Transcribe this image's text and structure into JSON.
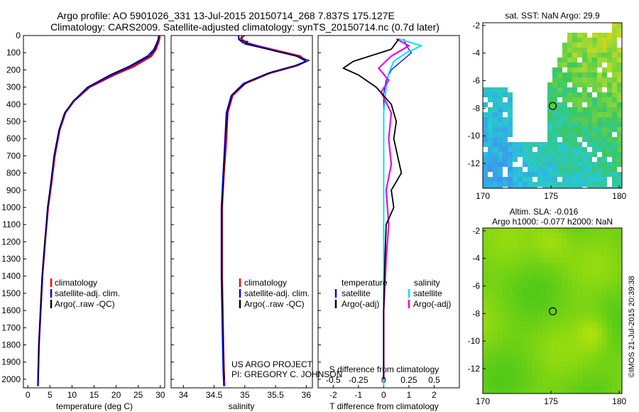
{
  "header": {
    "title_line1": "Argo profile: AO 5901026_331 13-Jul-2015 20150714_268 7.837S 175.127E",
    "title_line2": "Climatology: CARS2009. Satellite-adjusted climatology: synTS_20150714.nc (0.7d later)"
  },
  "colors": {
    "climatology": "#ff0000",
    "satellite": "#0000ff",
    "argo": "#000000",
    "salinity_satellite": "#00e5ee",
    "salinity_argo": "#ee00ee"
  },
  "chart_data": [
    {
      "type": "line",
      "id": "temperature",
      "xlabel": "temperature (deg C)",
      "ylabel": "",
      "xlim": [
        -1,
        31
      ],
      "ylim": [
        2050,
        0
      ],
      "xticks": [
        0,
        5,
        10,
        15,
        20,
        25,
        30
      ],
      "xtick_labels": [
        "0",
        "5",
        "10",
        "15",
        "20",
        "25",
        "30"
      ],
      "yticks": [
        0,
        100,
        200,
        300,
        400,
        500,
        600,
        700,
        800,
        900,
        1000,
        1100,
        1200,
        1300,
        1400,
        1500,
        1600,
        1700,
        1800,
        1900,
        2000
      ],
      "ytick_labels": [
        "0",
        "100",
        "200",
        "300",
        "400",
        "500",
        "600",
        "700",
        "800",
        "900",
        "1000",
        "1100",
        "1200",
        "1300",
        "1400",
        "1500",
        "1600",
        "1700",
        "1800",
        "1900",
        "2000"
      ],
      "legend": [
        "climatology",
        "satellite-adj. clim.",
        "Argo(..raw -QC)"
      ],
      "legend_position": "lower-right",
      "series": [
        {
          "name": "climatology",
          "x": [
            29.9,
            29.8,
            29.6,
            29.0,
            28.0,
            24.0,
            19.5,
            14.0,
            10.5,
            8.5,
            7.2,
            6.1,
            5.4,
            4.6,
            3.9,
            3.3,
            2.9,
            2.5,
            2.3
          ],
          "y": [
            0,
            20,
            40,
            80,
            120,
            180,
            230,
            300,
            380,
            450,
            550,
            700,
            850,
            1000,
            1200,
            1400,
            1600,
            1800,
            2040
          ]
        },
        {
          "name": "satellite",
          "x": [
            29.7,
            29.6,
            29.4,
            28.8,
            27.5,
            23.2,
            19.0,
            13.8,
            10.4,
            8.4,
            7.1,
            6.0,
            5.3,
            4.5,
            3.9,
            3.3,
            2.9,
            2.5,
            2.3
          ],
          "y": [
            0,
            20,
            40,
            80,
            120,
            180,
            230,
            300,
            380,
            450,
            550,
            700,
            850,
            1000,
            1200,
            1400,
            1600,
            1800,
            2040
          ]
        },
        {
          "name": "argo",
          "x": [
            29.6,
            29.5,
            29.2,
            28.5,
            27.0,
            22.8,
            18.5,
            13.5,
            10.3,
            8.3,
            7.0,
            5.9,
            5.2,
            4.5,
            3.8,
            3.2,
            2.8,
            2.5,
            2.3
          ],
          "y": [
            0,
            20,
            40,
            80,
            120,
            180,
            230,
            300,
            380,
            450,
            550,
            700,
            850,
            1000,
            1200,
            1400,
            1600,
            1800,
            2000
          ]
        }
      ]
    },
    {
      "type": "line",
      "id": "salinity",
      "xlabel": "salinity",
      "xlim": [
        33.8,
        36.1
      ],
      "ylim": [
        2050,
        0
      ],
      "xticks": [
        34,
        34.5,
        35,
        35.5,
        36
      ],
      "xtick_labels": [
        "34",
        "34.5",
        "35",
        "35.5",
        "36"
      ],
      "legend": [
        "climatology",
        "satellite-adj. clim.",
        "Argo(..raw -QC)"
      ],
      "legend_position": "lower-right",
      "annotation_line1": "US ARGO PROJECT",
      "annotation_line2": "PI: GREGORY C. JOHNSON",
      "series": [
        {
          "name": "climatology",
          "x": [
            34.95,
            34.95,
            35.0,
            35.2,
            35.55,
            35.9,
            36.0,
            35.85,
            35.4,
            35.0,
            34.8,
            34.72,
            34.7,
            34.66,
            34.63,
            34.63,
            34.63,
            34.64,
            34.65,
            34.66,
            34.67
          ],
          "y": [
            0,
            20,
            40,
            60,
            90,
            120,
            150,
            175,
            220,
            280,
            350,
            450,
            600,
            800,
            1000,
            1200,
            1400,
            1600,
            1800,
            1950,
            2040
          ]
        },
        {
          "name": "satellite",
          "x": [
            34.9,
            34.9,
            34.96,
            35.18,
            35.5,
            35.85,
            36.0,
            35.83,
            35.38,
            34.98,
            34.78,
            34.7,
            34.68,
            34.65,
            34.62,
            34.62,
            34.62,
            34.63,
            34.64,
            34.65,
            34.66
          ],
          "y": [
            0,
            20,
            40,
            60,
            90,
            120,
            150,
            175,
            220,
            280,
            350,
            450,
            600,
            800,
            1000,
            1200,
            1400,
            1600,
            1800,
            1950,
            2040
          ]
        },
        {
          "name": "argo",
          "x": [
            35.0,
            34.9,
            35.05,
            35.0,
            35.3,
            35.75,
            36.05,
            35.88,
            35.45,
            35.05,
            34.8,
            34.72,
            34.69,
            34.66,
            34.63,
            34.63,
            34.63,
            34.64,
            34.65,
            34.66,
            34.67
          ],
          "y": [
            0,
            25,
            35,
            50,
            75,
            110,
            145,
            170,
            210,
            270,
            340,
            440,
            590,
            790,
            1000,
            1200,
            1400,
            1600,
            1800,
            1950,
            2000
          ]
        }
      ]
    },
    {
      "type": "line",
      "id": "differences",
      "xlabel": "T difference from climatology",
      "xlabel_top": "S difference from climatology",
      "xlim": [
        -2.6,
        3.0
      ],
      "ylim": [
        2050,
        0
      ],
      "xticks": [
        -2,
        -1,
        0,
        1,
        2
      ],
      "xtick_labels": [
        "-2",
        "-1",
        "0",
        "1",
        "2"
      ],
      "sticks": [
        -0.5,
        -0.25,
        0,
        0.25,
        0.5
      ],
      "stick_labels": [
        "-0.5",
        "-0.25",
        "0",
        "0.25",
        "0.5"
      ],
      "legend_temperature_title": "temperature",
      "legend_salinity_title": "salinity",
      "legend_temperature": [
        "satellite",
        "Argo(-adj)"
      ],
      "legend_salinity": [
        "satellite",
        "Argo(-adj)"
      ],
      "series": [
        {
          "name": "T satellite",
          "x": [
            0.8,
            0.9,
            1.1,
            0.7,
            0.3,
            0.1,
            0.0,
            0.0,
            0.0,
            0.0,
            0.0,
            0.0,
            0.0,
            0.0,
            0.0,
            0.0
          ],
          "y": [
            20,
            60,
            100,
            150,
            200,
            260,
            340,
            500,
            700,
            900,
            1100,
            1300,
            1500,
            1700,
            1900,
            2040
          ]
        },
        {
          "name": "T argo",
          "x": [
            0.6,
            0.3,
            -1.2,
            -1.6,
            -1.0,
            -0.3,
            0.3,
            0.5,
            0.4,
            0.7,
            0.3,
            0.4,
            0.1,
            0.05,
            0.0,
            0.0
          ],
          "y": [
            20,
            80,
            150,
            190,
            230,
            300,
            400,
            500,
            600,
            800,
            900,
            1000,
            1100,
            1300,
            1600,
            2000
          ]
        },
        {
          "name": "S satellite",
          "x": [
            0.6,
            1.5,
            0.9,
            0.4,
            0.2,
            0.1,
            0.0,
            0.0,
            0.0,
            0.0,
            0.0,
            0.0
          ],
          "y": [
            20,
            60,
            100,
            150,
            220,
            300,
            450,
            700,
            1000,
            1400,
            1800,
            2040
          ]
        },
        {
          "name": "S argo",
          "x": [
            0.5,
            1.0,
            0.3,
            -0.2,
            0.2,
            -0.1,
            0.3,
            0.2,
            0.3,
            0.1,
            0.2,
            0.1,
            0.0,
            0.0
          ],
          "y": [
            20,
            60,
            120,
            190,
            260,
            330,
            450,
            600,
            750,
            900,
            1100,
            1300,
            1600,
            2000
          ]
        }
      ]
    },
    {
      "type": "heatmap",
      "id": "sst_map",
      "title": "sat. SST: NaN Argo: 29.9",
      "xlim": [
        170,
        180.2
      ],
      "ylim": [
        -13.8,
        -1.8
      ],
      "xticks": [
        170,
        175,
        180
      ],
      "xtick_labels": [
        "170",
        "175",
        "180"
      ],
      "yticks": [
        -2,
        -4,
        -6,
        -8,
        -10,
        -12
      ],
      "ytick_labels": [
        "-2",
        "-4",
        "-6",
        "-8",
        "-10",
        "-12"
      ],
      "argo_location": [
        175.127,
        -7.837
      ]
    },
    {
      "type": "heatmap",
      "id": "sla_map",
      "title_line1": "Altim. SLA: -0.016",
      "title_line2": "Argo h1000: -0.077 h2000: NaN",
      "xlim": [
        170,
        180.2
      ],
      "ylim": [
        -13.8,
        -1.8
      ],
      "xticks": [
        170,
        175,
        180
      ],
      "xtick_labels": [
        "170",
        "175",
        "180"
      ],
      "yticks": [
        -2,
        -4,
        -6,
        -8,
        -10,
        -12
      ],
      "ytick_labels": [
        "-2",
        "-4",
        "-6",
        "-8",
        "-10",
        "-12"
      ],
      "argo_location": [
        175.127,
        -7.837
      ]
    }
  ],
  "footer": {
    "credit": "©IMOS 21-Jul-2015 20:39:38"
  }
}
